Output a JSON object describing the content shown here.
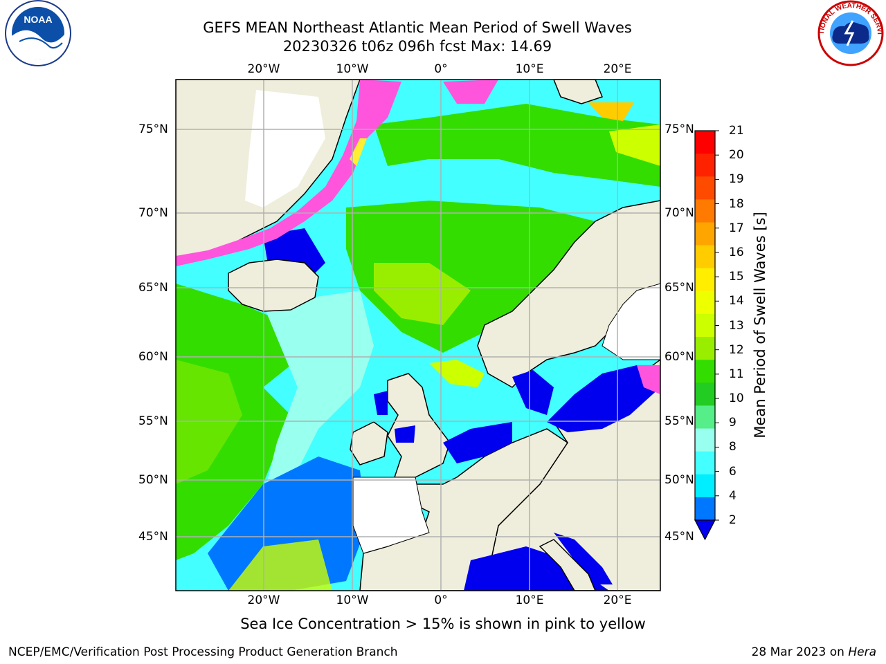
{
  "title_line1": "GEFS MEAN Northeast Atlantic Mean Period of Swell Waves",
  "title_line2": "20230326 t06z 096h fcst   Max: 14.69",
  "lon_labels": [
    "20°W",
    "10°W",
    "0°",
    "10°E",
    "20°E"
  ],
  "lat_labels": [
    "75°N",
    "70°N",
    "65°N",
    "60°N",
    "55°N",
    "50°N",
    "45°N"
  ],
  "colorbar": {
    "title": "Mean Period of Swell Waves [s]",
    "ticks": [
      "21",
      "20",
      "19",
      "18",
      "17",
      "16",
      "15",
      "14",
      "13",
      "12",
      "11",
      "10",
      "9",
      "8",
      "6",
      "4",
      "2"
    ],
    "colors": [
      "#ff0000",
      "#ff2200",
      "#ff4b00",
      "#ff7a00",
      "#ffa500",
      "#ffcc00",
      "#ffee00",
      "#eeff00",
      "#ccff00",
      "#99ee00",
      "#33dd00",
      "#22cc22",
      "#55ee88",
      "#99ffee",
      "#44ffff",
      "#00eeff",
      "#0077ff"
    ],
    "under_color": "#0000ee"
  },
  "caption": "Sea Ice Concentration > 15% is shown in pink to yellow",
  "footer_left": "NCEP/EMC/Verification Post Processing Product Generation Branch",
  "footer_right_date": "28 Mar 2023 on",
  "footer_right_machine": "Hera",
  "logos": {
    "left": "NOAA",
    "right": "NATIONAL WEATHER SERVICE"
  },
  "colors": {
    "land": "#efeedc",
    "ice_pink": "#ff55dd",
    "ice_yellow": "#ffee33",
    "grid": "#b0b0b0"
  }
}
